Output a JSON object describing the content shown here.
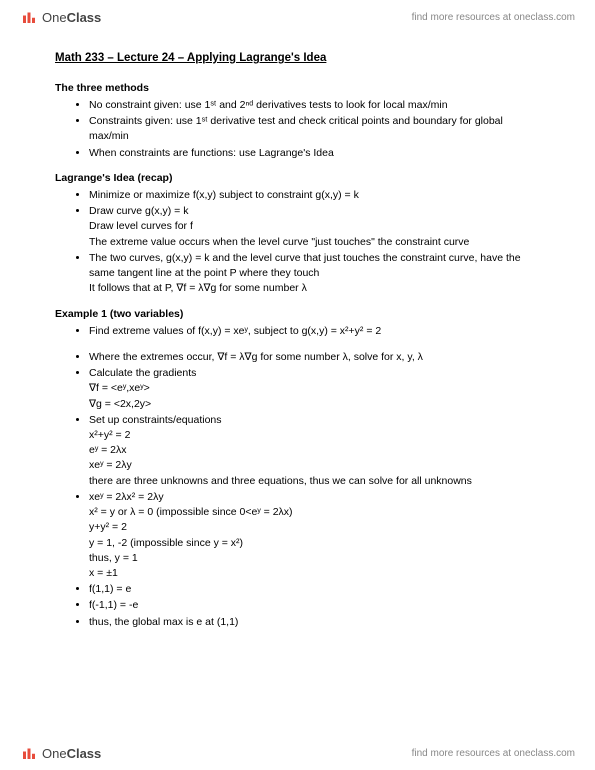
{
  "brand": {
    "logo_label": "OneClass",
    "tagline": "find more resources at oneclass.com"
  },
  "page_title": "Math 233 – Lecture 24 – Applying Lagrange's Idea",
  "sections": [
    {
      "title": "The three methods",
      "items": [
        {
          "text": "No constraint given: use 1ˢᵗ and 2ⁿᵈ derivatives tests to look for local max/min"
        },
        {
          "text": "Constraints given: use 1ˢᵗ derivative test and check critical points and boundary for global max/min"
        },
        {
          "text": "When constraints are functions: use Lagrange's Idea"
        }
      ]
    },
    {
      "title": "Lagrange's Idea (recap)",
      "items": [
        {
          "text": "Minimize or maximize f(x,y) subject to constraint g(x,y) = k"
        },
        {
          "text": "Draw curve g(x,y) = k",
          "subs": [
            "Draw level curves for f",
            "The extreme value occurs when the level curve \"just touches\" the constraint curve"
          ]
        },
        {
          "text": "The two curves, g(x,y) = k and the level curve that just touches the constraint curve, have the same tangent line at the point P where they touch",
          "subs": [
            "It follows that at P, ∇f = λ∇g for some number λ"
          ]
        }
      ]
    },
    {
      "title": "Example 1 (two variables)",
      "items": [
        {
          "text": "Find extreme values of f(x,y) = xeʸ, subject to g(x,y) = x²+y² = 2",
          "gap_after": true
        },
        {
          "text": "Where the extremes occur, ∇f = λ∇g for some number λ, solve for x, y, λ"
        },
        {
          "text": "Calculate the gradients",
          "subs": [
            "∇f = <eʸ,xeʸ>",
            "∇g = <2x,2y>"
          ]
        },
        {
          "text": "Set up constraints/equations",
          "subs": [
            "x²+y² = 2",
            "eʸ = 2λx",
            "xeʸ = 2λy",
            "there are three unknowns and three equations, thus we can solve for all unknowns"
          ]
        },
        {
          "text": "xeʸ = 2λx² = 2λy",
          "subs": [
            "x² = y   or  λ = 0 (impossible since 0<eʸ = 2λx)",
            "y+y² = 2",
            "y = 1, -2 (impossible since y = x²)",
            "thus, y = 1",
            "x = ±1"
          ]
        },
        {
          "text": "f(1,1) = e"
        },
        {
          "text": "f(-1,1) = -e"
        },
        {
          "text": "thus, the global max is e at (1,1)"
        }
      ]
    }
  ]
}
